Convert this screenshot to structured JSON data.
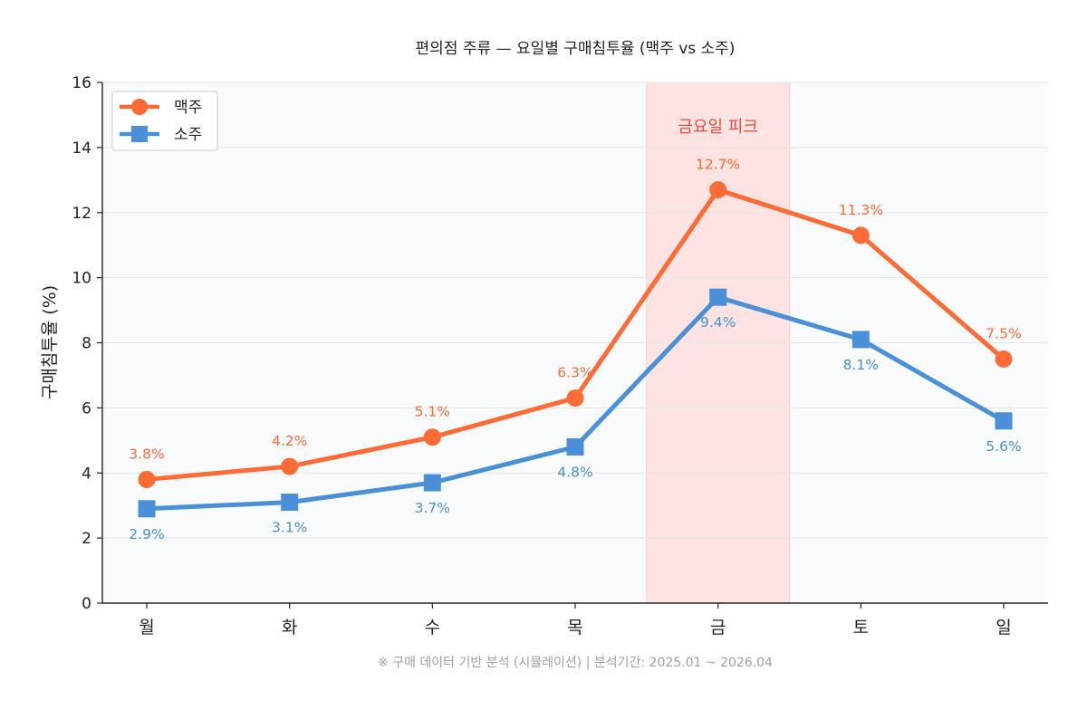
{
  "chart_data": {
    "type": "line",
    "title": "편의점 주류 — 요일별 구매침투율 (맥주 vs 소주)",
    "ylabel": "구매침투율 (%)",
    "xlabel": "",
    "categories": [
      "월",
      "화",
      "수",
      "목",
      "금",
      "토",
      "일"
    ],
    "ylim": [
      0,
      16
    ],
    "yticks": [
      0,
      2,
      4,
      6,
      8,
      10,
      12,
      14,
      16
    ],
    "grid": true,
    "legend": "top-left",
    "series": [
      {
        "name": "맥주",
        "values": [
          3.8,
          4.2,
          5.1,
          6.3,
          12.7,
          11.3,
          7.5
        ],
        "labels": [
          "3.8%",
          "4.2%",
          "5.1%",
          "6.3%",
          "12.7%",
          "11.3%",
          "7.5%"
        ],
        "color": "#ff6b35",
        "marker": "circle",
        "label_position": "above"
      },
      {
        "name": "소주",
        "values": [
          2.9,
          3.1,
          3.7,
          4.8,
          9.4,
          8.1,
          5.6
        ],
        "labels": [
          "2.9%",
          "3.1%",
          "3.7%",
          "4.8%",
          "9.4%",
          "8.1%",
          "5.6%"
        ],
        "color": "#4a90d9",
        "marker": "square",
        "label_position": "below"
      }
    ],
    "highlight": {
      "category": "금",
      "text": "금요일 피크",
      "fill_color": "#fde3e1",
      "text_color": "#e74c3c"
    },
    "footnote": "※ 구매 데이터 기반 분석 (시뮬레이션) | 분석기간: 2025.01 ~ 2026.04"
  },
  "colors": {
    "plot_background": "#f8fafc",
    "grid": "#e6e6e6",
    "axis": "#222222"
  }
}
